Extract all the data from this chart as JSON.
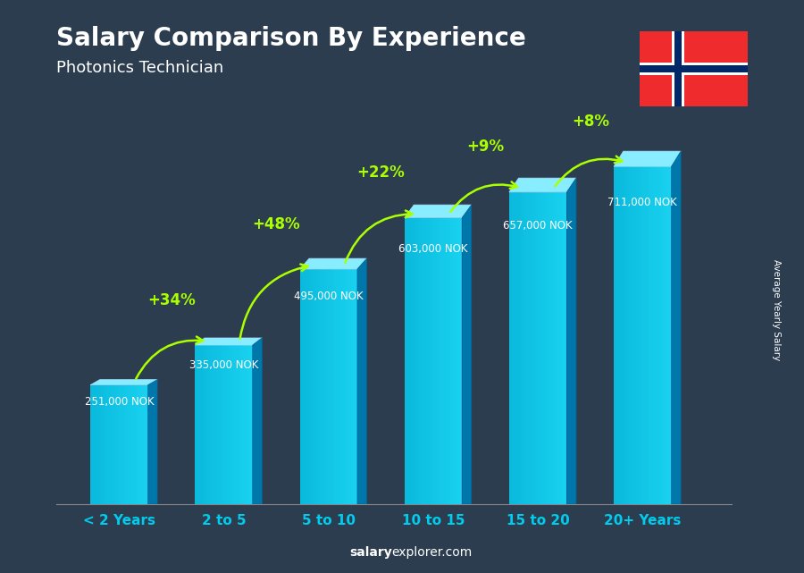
{
  "title": "Salary Comparison By Experience",
  "subtitle": "Photonics Technician",
  "categories": [
    "< 2 Years",
    "2 to 5",
    "5 to 10",
    "10 to 15",
    "15 to 20",
    "20+ Years"
  ],
  "values": [
    251000,
    335000,
    495000,
    603000,
    657000,
    711000
  ],
  "value_labels": [
    "251,000 NOK",
    "335,000 NOK",
    "495,000 NOK",
    "603,000 NOK",
    "657,000 NOK",
    "711,000 NOK"
  ],
  "pct_labels": [
    "+34%",
    "+48%",
    "+22%",
    "+9%",
    "+8%"
  ],
  "bar_color_top": "#88eeff",
  "bar_color_dark": "#0077aa",
  "background_color": "#2d3d50",
  "pct_color": "#aaff00",
  "xlabel_color": "#00ccee",
  "ylabel_text": "Average Yearly Salary",
  "footer_bold": "salary",
  "footer_normal": "explorer.com",
  "ylim": [
    0,
    820000
  ],
  "flag_blue": "#002868",
  "flag_red": "#EF2B2D"
}
